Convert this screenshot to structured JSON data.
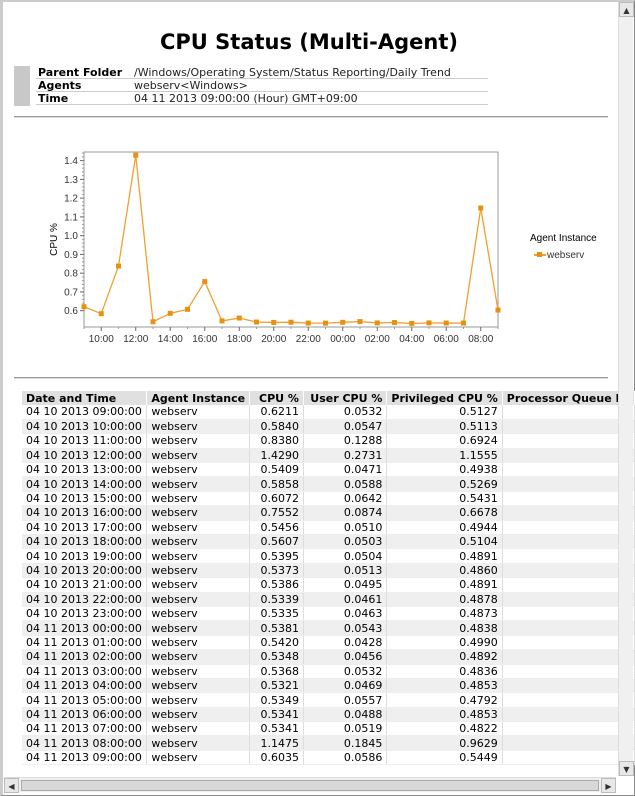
{
  "title": "CPU Status (Multi-Agent)",
  "info": [
    {
      "label": "Parent Folder",
      "value": "/Windows/Operating System/Status Reporting/Daily Trend"
    },
    {
      "label": "Agents",
      "value": "webserv<Windows>"
    },
    {
      "label": "Time",
      "value": "04 11 2013 09:00:00  (Hour)  GMT+09:00"
    }
  ],
  "colors": {
    "series": "#f0a030",
    "marker": "#e8900f"
  },
  "chart_data": {
    "type": "line",
    "title": "",
    "xlabel": "",
    "ylabel": "CPU %",
    "ylim": [
      0.513,
      1.446
    ],
    "yticks": [
      "0.6",
      "0.7",
      "0.8",
      "0.9",
      "1.0",
      "1.1",
      "1.2",
      "1.3",
      "1.4"
    ],
    "xticks": [
      "10:00",
      "12:00",
      "14:00",
      "16:00",
      "18:00",
      "20:00",
      "22:00",
      "00:00",
      "02:00",
      "04:00",
      "06:00",
      "08:00"
    ],
    "x": [
      "09:00",
      "10:00",
      "11:00",
      "12:00",
      "13:00",
      "14:00",
      "15:00",
      "16:00",
      "17:00",
      "18:00",
      "19:00",
      "20:00",
      "21:00",
      "22:00",
      "23:00",
      "00:00",
      "01:00",
      "02:00",
      "03:00",
      "04:00",
      "05:00",
      "06:00",
      "07:00",
      "08:00",
      "09:00"
    ],
    "legend_title": "Agent Instance",
    "legend_position": "right",
    "grid": false,
    "series": [
      {
        "name": "webserv",
        "values": [
          0.6211,
          0.584,
          0.838,
          1.429,
          0.5409,
          0.5858,
          0.6072,
          0.7552,
          0.5456,
          0.5607,
          0.5395,
          0.5373,
          0.5386,
          0.5339,
          0.5335,
          0.5381,
          0.542,
          0.5348,
          0.5368,
          0.5321,
          0.5349,
          0.5341,
          0.5341,
          1.1475,
          0.6035
        ]
      }
    ]
  },
  "table": {
    "headers": [
      "Date and Time",
      "Agent Instance",
      "CPU %",
      "User CPU %",
      "Privileged CPU %",
      "Processor Queue Le"
    ],
    "rows": [
      [
        "04 10 2013 09:00:00",
        "webserv",
        "0.6211",
        "0.0532",
        "0.5127",
        ""
      ],
      [
        "04 10 2013 10:00:00",
        "webserv",
        "0.5840",
        "0.0547",
        "0.5113",
        ""
      ],
      [
        "04 10 2013 11:00:00",
        "webserv",
        "0.8380",
        "0.1288",
        "0.6924",
        ""
      ],
      [
        "04 10 2013 12:00:00",
        "webserv",
        "1.4290",
        "0.2731",
        "1.1555",
        ""
      ],
      [
        "04 10 2013 13:00:00",
        "webserv",
        "0.5409",
        "0.0471",
        "0.4938",
        ""
      ],
      [
        "04 10 2013 14:00:00",
        "webserv",
        "0.5858",
        "0.0588",
        "0.5269",
        ""
      ],
      [
        "04 10 2013 15:00:00",
        "webserv",
        "0.6072",
        "0.0642",
        "0.5431",
        ""
      ],
      [
        "04 10 2013 16:00:00",
        "webserv",
        "0.7552",
        "0.0874",
        "0.6678",
        ""
      ],
      [
        "04 10 2013 17:00:00",
        "webserv",
        "0.5456",
        "0.0510",
        "0.4944",
        ""
      ],
      [
        "04 10 2013 18:00:00",
        "webserv",
        "0.5607",
        "0.0503",
        "0.5104",
        ""
      ],
      [
        "04 10 2013 19:00:00",
        "webserv",
        "0.5395",
        "0.0504",
        "0.4891",
        ""
      ],
      [
        "04 10 2013 20:00:00",
        "webserv",
        "0.5373",
        "0.0513",
        "0.4860",
        ""
      ],
      [
        "04 10 2013 21:00:00",
        "webserv",
        "0.5386",
        "0.0495",
        "0.4891",
        ""
      ],
      [
        "04 10 2013 22:00:00",
        "webserv",
        "0.5339",
        "0.0461",
        "0.4878",
        ""
      ],
      [
        "04 10 2013 23:00:00",
        "webserv",
        "0.5335",
        "0.0463",
        "0.4873",
        ""
      ],
      [
        "04 11 2013 00:00:00",
        "webserv",
        "0.5381",
        "0.0543",
        "0.4838",
        ""
      ],
      [
        "04 11 2013 01:00:00",
        "webserv",
        "0.5420",
        "0.0428",
        "0.4990",
        ""
      ],
      [
        "04 11 2013 02:00:00",
        "webserv",
        "0.5348",
        "0.0456",
        "0.4892",
        ""
      ],
      [
        "04 11 2013 03:00:00",
        "webserv",
        "0.5368",
        "0.0532",
        "0.4836",
        ""
      ],
      [
        "04 11 2013 04:00:00",
        "webserv",
        "0.5321",
        "0.0469",
        "0.4853",
        ""
      ],
      [
        "04 11 2013 05:00:00",
        "webserv",
        "0.5349",
        "0.0557",
        "0.4792",
        ""
      ],
      [
        "04 11 2013 06:00:00",
        "webserv",
        "0.5341",
        "0.0488",
        "0.4853",
        ""
      ],
      [
        "04 11 2013 07:00:00",
        "webserv",
        "0.5341",
        "0.0519",
        "0.4822",
        ""
      ],
      [
        "04 11 2013 08:00:00",
        "webserv",
        "1.1475",
        "0.1845",
        "0.9629",
        ""
      ],
      [
        "04 11 2013 09:00:00",
        "webserv",
        "0.6035",
        "0.0586",
        "0.5449",
        ""
      ]
    ]
  },
  "scroll": {
    "left": "◀",
    "right": "▶",
    "up": "▲",
    "down": "▼"
  }
}
